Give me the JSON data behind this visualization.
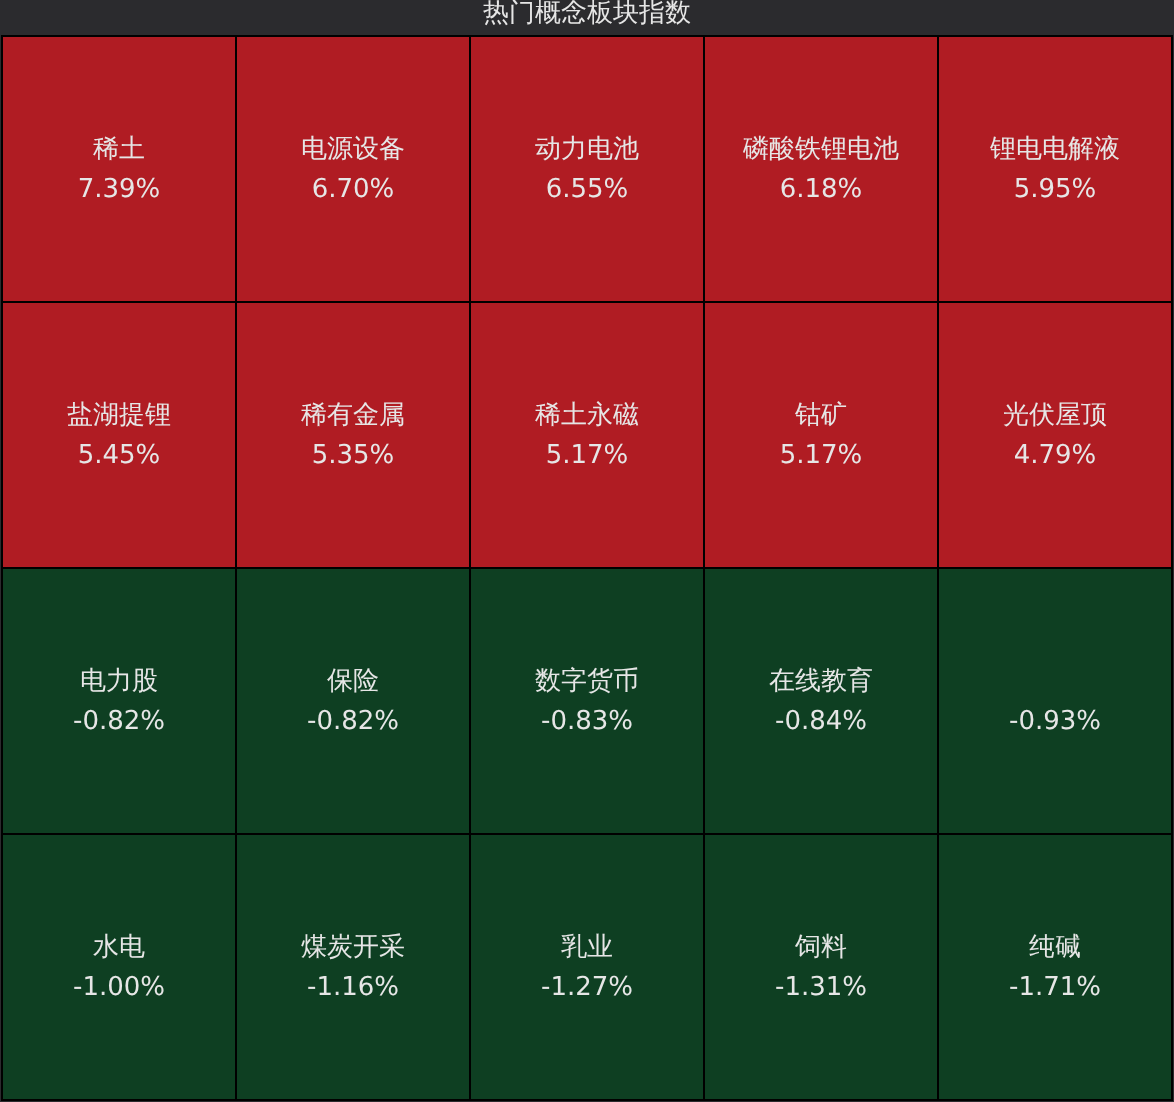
{
  "chart_data": {
    "type": "other",
    "title": "热门概念板块指数",
    "categories": [
      "稀土",
      "电源设备",
      "动力电池",
      "磷酸铁锂电池",
      "锂电电解液",
      "盐湖提锂",
      "稀有金属",
      "稀土永磁",
      "钴矿",
      "光伏屋顶",
      "电力股",
      "保险",
      "数字货币",
      "在线教育",
      null,
      "水电",
      "煤炭开采",
      "乳业",
      "饲料",
      "纯碱"
    ],
    "values": [
      7.39,
      6.7,
      6.55,
      6.18,
      5.95,
      5.45,
      5.35,
      5.17,
      5.17,
      4.79,
      -0.82,
      -0.82,
      -0.83,
      -0.84,
      -0.93,
      -1.0,
      -1.16,
      -1.27,
      -1.31,
      -1.71
    ],
    "value_labels": [
      "7.39%",
      "6.70%",
      "6.55%",
      "6.18%",
      "5.95%",
      "5.45%",
      "5.35%",
      "5.17%",
      "5.17%",
      "4.79%",
      "-0.82%",
      "-0.82%",
      "-0.83%",
      "-0.84%",
      "-0.93%",
      "-1.00%",
      "-1.16%",
      "-1.27%",
      "-1.31%",
      "-1.71%"
    ],
    "colors": [
      "#b01c23",
      "#b01c23",
      "#b01c23",
      "#b01c23",
      "#b01c23",
      "#b01c23",
      "#b01c23",
      "#b01c23",
      "#b01c23",
      "#b01c23",
      "#0e3f22",
      "#0e3f22",
      "#0e3f22",
      "#0e3f22",
      "#0e3f22",
      "#0e3f22",
      "#0e3f22",
      "#0e3f22",
      "#0e3f22",
      "#0e3f22"
    ]
  }
}
